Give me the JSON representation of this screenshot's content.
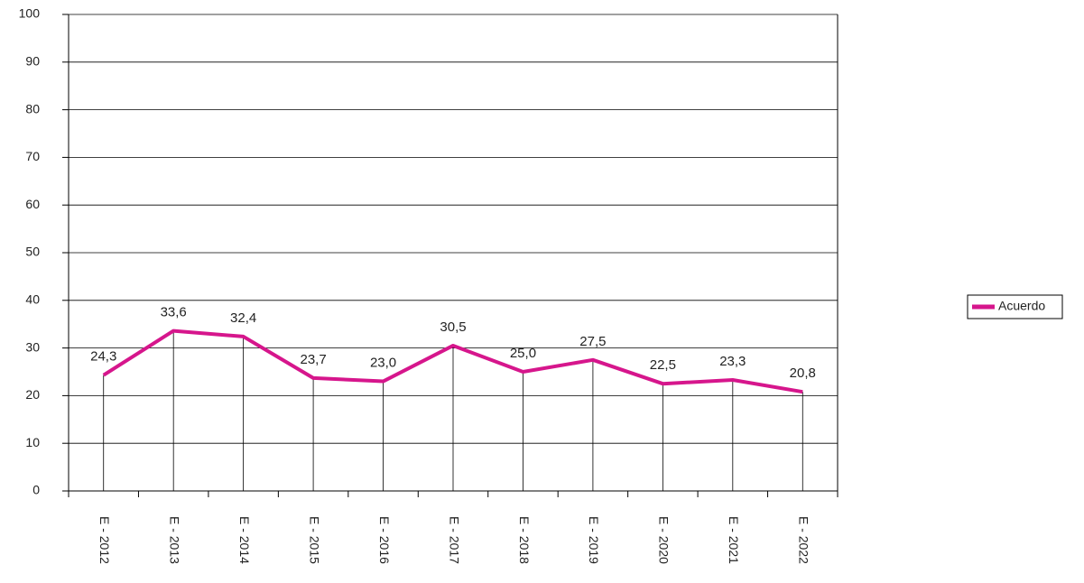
{
  "chart_data": {
    "type": "line",
    "categories": [
      "E - 2012",
      "E - 2013",
      "E - 2014",
      "E - 2015",
      "E - 2016",
      "E - 2017",
      "E - 2018",
      "E - 2019",
      "E - 2020",
      "E - 2021",
      "E - 2022"
    ],
    "series": [
      {
        "name": "Acuerdo",
        "color": "#d6168c",
        "values": [
          24.3,
          33.6,
          32.4,
          23.7,
          23.0,
          30.5,
          25.0,
          27.5,
          22.5,
          23.3,
          20.8
        ],
        "value_labels": [
          "24,3",
          "33,6",
          "32,4",
          "23,7",
          "23,0",
          "30,5",
          "25,0",
          "27,5",
          "22,5",
          "23,3",
          "20,8"
        ]
      }
    ],
    "ylim": [
      0,
      100
    ],
    "yticks": [
      0,
      10,
      20,
      30,
      40,
      50,
      60,
      70,
      80,
      90,
      100
    ],
    "grid": true,
    "legend": "right"
  }
}
